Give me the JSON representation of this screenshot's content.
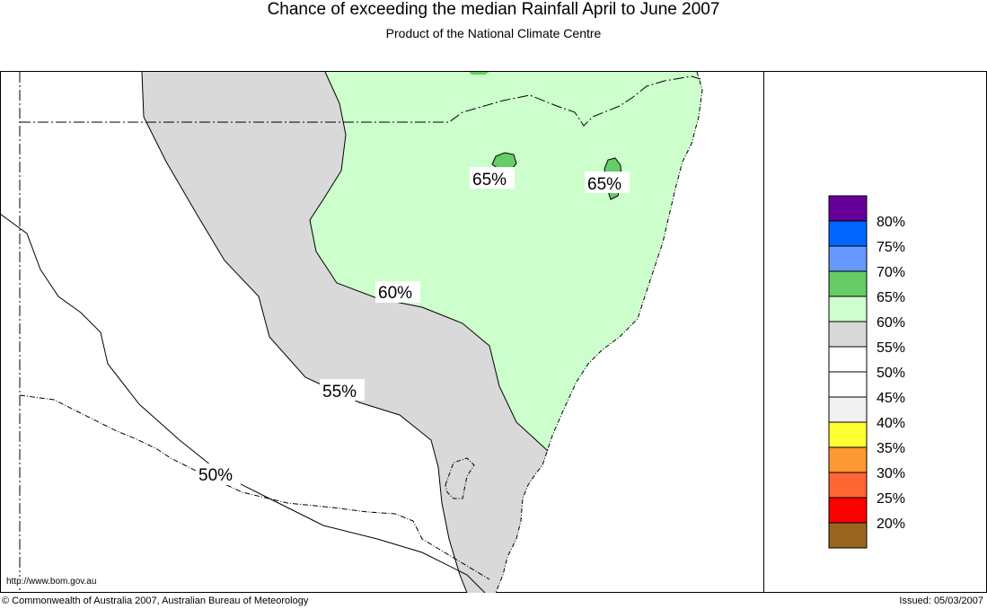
{
  "header": {
    "title": "Chance of exceeding the median Rainfall April to June 2007",
    "subtitle": "Product of the National Climate Centre"
  },
  "map": {
    "contour_labels": [
      {
        "id": "label-65-west",
        "text": "65%"
      },
      {
        "id": "label-65-east",
        "text": "65%"
      },
      {
        "id": "label-60",
        "text": "60%"
      },
      {
        "id": "label-55",
        "text": "55%"
      },
      {
        "id": "label-50",
        "text": "50%"
      }
    ],
    "fill_colors": {
      "band_60_65": "#ccffcc",
      "band_65_70": "#66cc66",
      "band_55_60": "#d9d9d9",
      "band_50_55": "#ffffff"
    },
    "url_text": "http://www.bom.gov.au"
  },
  "legend": {
    "items": [
      {
        "label": "80%",
        "color": "#660099"
      },
      {
        "label": "75%",
        "color": "#0066ff"
      },
      {
        "label": "70%",
        "color": "#6699ff"
      },
      {
        "label": "65%",
        "color": "#66cc66"
      },
      {
        "label": "60%",
        "color": "#ccffcc"
      },
      {
        "label": "55%",
        "color": "#d9d9d9"
      },
      {
        "label": "50%",
        "color": "#ffffff"
      },
      {
        "label": "45%",
        "color": "#ffffff"
      },
      {
        "label": "40%",
        "color": "#f0f0f0"
      },
      {
        "label": "35%",
        "color": "#ffff33"
      },
      {
        "label": "30%",
        "color": "#ff9933"
      },
      {
        "label": "25%",
        "color": "#ff6633"
      },
      {
        "label": "20%",
        "color": "#ff0000"
      },
      {
        "extra_color": "#996622"
      }
    ]
  },
  "footer": {
    "copyright": "© Commonwealth of Australia 2007, Australian Bureau of Meteorology",
    "issued": "Issued: 05/03/2007"
  }
}
